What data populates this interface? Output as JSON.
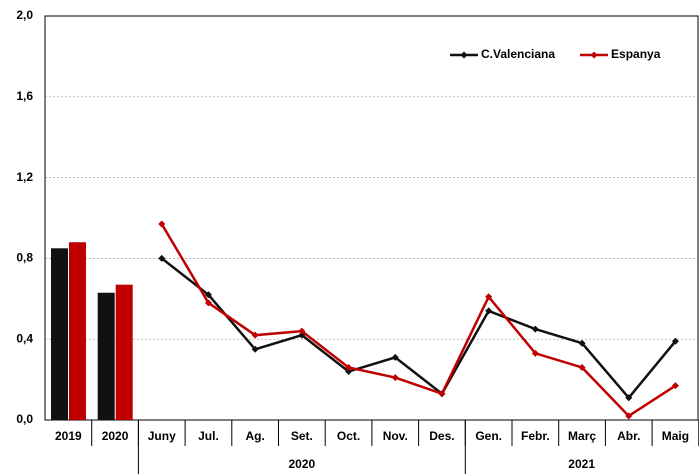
{
  "chart_data": [
    {
      "type": "bar",
      "categories": [
        "2019",
        "2020"
      ],
      "series": [
        {
          "color": "#111111",
          "values": [
            0.85,
            0.63
          ]
        },
        {
          "color": "#c00000",
          "values": [
            0.88,
            0.67
          ]
        }
      ],
      "ylim": [
        0,
        2
      ],
      "yticks": [
        {
          "value": 0,
          "label": "0,0"
        },
        {
          "value": 0.4,
          "label": "0,4"
        },
        {
          "value": 0.8,
          "label": "0,8"
        },
        {
          "value": 1.2,
          "label": "1,2"
        },
        {
          "value": 1.6,
          "label": "1,6"
        },
        {
          "value": 2,
          "label": "2,0"
        }
      ],
      "grid": true
    },
    {
      "type": "line",
      "categories": [
        "Juny",
        "Jul.",
        "Ag.",
        "Set.",
        "Oct.",
        "Nov.",
        "Des.",
        "Gen.",
        "Febr.",
        "Març",
        "Abr.",
        "Maig"
      ],
      "x_groups": [
        {
          "label": "2020",
          "size": 7
        },
        {
          "label": "2021",
          "size": 5
        }
      ],
      "series": [
        {
          "name": "C.Valenciana",
          "color": "#111111",
          "values": [
            0.8,
            0.62,
            0.35,
            0.42,
            0.24,
            0.31,
            0.13,
            0.54,
            0.45,
            0.38,
            0.11,
            0.39
          ]
        },
        {
          "name": "Espanya",
          "color": "#c00000",
          "values": [
            0.97,
            0.58,
            0.42,
            0.44,
            0.26,
            0.21,
            0.13,
            0.61,
            0.33,
            0.26,
            0.02,
            0.17
          ]
        }
      ],
      "legend": "upper right"
    }
  ]
}
